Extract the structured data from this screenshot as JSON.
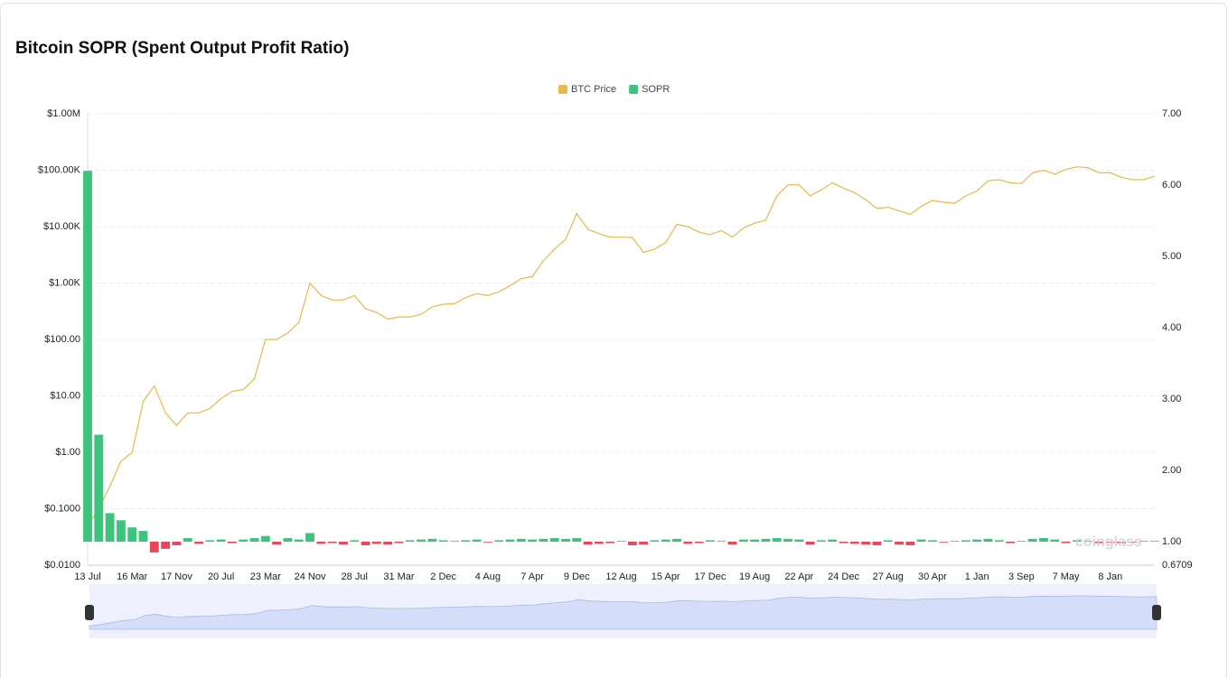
{
  "chart_data": {
    "type": "line_bar",
    "title": "Bitcoin SOPR (Spent Output Profit Ratio)",
    "watermark": "coinglass",
    "log_scale": true,
    "grid": true,
    "legend_position": "top",
    "categories": [
      "13 Jul",
      null,
      null,
      null,
      "16 Mar",
      null,
      null,
      null,
      "17 Nov",
      null,
      null,
      null,
      "20 Jul",
      null,
      null,
      null,
      "23 Mar",
      null,
      null,
      null,
      "24 Nov",
      null,
      null,
      null,
      "28 Jul",
      null,
      null,
      null,
      "31 Mar",
      null,
      null,
      null,
      "2 Dec",
      null,
      null,
      null,
      "4 Aug",
      null,
      null,
      null,
      "7 Apr",
      null,
      null,
      null,
      "9 Dec",
      null,
      null,
      null,
      "12 Aug",
      null,
      null,
      null,
      "15 Apr",
      null,
      null,
      null,
      "17 Dec",
      null,
      null,
      null,
      "19 Aug",
      null,
      null,
      null,
      "22 Apr",
      null,
      null,
      null,
      "24 Dec",
      null,
      null,
      null,
      "27 Aug",
      null,
      null,
      null,
      "30 Apr",
      null,
      null,
      null,
      "1 Jan",
      null,
      null,
      null,
      "3 Sep",
      null,
      null,
      null,
      "7 May",
      null,
      null,
      null,
      "8 Jan",
      null,
      null,
      null,
      null
    ],
    "ylim": [
      0.01,
      1000000
    ],
    "yticks": [
      {
        "value": 0.01,
        "label": "$0.0100"
      },
      {
        "value": 0.1,
        "label": "$0.1000"
      },
      {
        "value": 1,
        "label": "$1.00"
      },
      {
        "value": 10,
        "label": "$10.00"
      },
      {
        "value": 100,
        "label": "$100.00"
      },
      {
        "value": 1000,
        "label": "$1.00K"
      },
      {
        "value": 10000,
        "label": "$10.00K"
      },
      {
        "value": 100000,
        "label": "$100.00K"
      },
      {
        "value": 1000000,
        "label": "$1.00M"
      }
    ],
    "y2lim": [
      0.6709,
      7
    ],
    "y2ticks": [
      0.6709,
      {
        "value": 1,
        "label": "1.00"
      },
      {
        "value": 2,
        "label": "2.00"
      },
      {
        "value": 3,
        "label": "3.00"
      },
      {
        "value": 4,
        "label": "4.00"
      },
      {
        "value": 5,
        "label": "5.00"
      },
      {
        "value": 6,
        "label": "6.00"
      },
      {
        "value": 7,
        "label": "7.00"
      }
    ],
    "series": [
      {
        "name": "BTC Price",
        "color": "#e9b949",
        "values": [
          0.05,
          0.1,
          0.25,
          0.7,
          1,
          8,
          15,
          5,
          3,
          5,
          5,
          6,
          9,
          12,
          13,
          20,
          100,
          100,
          130,
          200,
          1000,
          600,
          500,
          500,
          600,
          350,
          300,
          230,
          250,
          250,
          280,
          380,
          420,
          430,
          550,
          650,
          600,
          700,
          900,
          1200,
          1300,
          2500,
          4000,
          6000,
          17000,
          9000,
          7500,
          6500,
          6500,
          6400,
          3500,
          4000,
          5200,
          11000,
          10000,
          8000,
          7200,
          8500,
          6500,
          9500,
          11500,
          13000,
          35000,
          55000,
          55000,
          35000,
          45000,
          60000,
          48000,
          40000,
          30000,
          21000,
          22000,
          19000,
          16500,
          23000,
          29000,
          27000,
          26000,
          35000,
          43000,
          65000,
          68000,
          60000,
          58000,
          90000,
          100000,
          85000,
          103000,
          115000,
          110000,
          90000,
          90000,
          75000,
          68000,
          68000,
          78000
        ]
      },
      {
        "name": "SOPR",
        "color": "#3cc47c",
        "negative_color": "#e8475b",
        "axis": "y2",
        "values": [
          6.2,
          2.5,
          1.4,
          1.3,
          1.2,
          1.15,
          0.85,
          0.9,
          0.95,
          1.05,
          0.97,
          1.02,
          1.03,
          0.98,
          1.03,
          1.05,
          1.08,
          0.96,
          1.05,
          1.03,
          1.12,
          0.97,
          0.98,
          0.96,
          1.02,
          0.95,
          0.97,
          0.96,
          0.98,
          1.02,
          1.03,
          1.04,
          1.02,
          1.01,
          1.02,
          1.03,
          0.99,
          1.02,
          1.03,
          1.04,
          1.03,
          1.04,
          1.05,
          1.04,
          1.05,
          0.96,
          0.97,
          0.98,
          1.01,
          0.95,
          0.96,
          1.02,
          1.03,
          1.04,
          0.97,
          0.98,
          1.02,
          1.01,
          0.96,
          1.03,
          1.03,
          1.04,
          1.05,
          1.04,
          1.03,
          0.96,
          1.02,
          1.03,
          0.98,
          0.97,
          0.96,
          0.95,
          1.02,
          0.96,
          0.95,
          1.03,
          1.02,
          0.99,
          1.01,
          1.02,
          1.03,
          1.04,
          1.02,
          0.98,
          1.01,
          1.04,
          1.05,
          1.03,
          0.98,
          1.02,
          1.01,
          0.98,
          0.99,
          0.98,
          0.99,
          1.01,
          1.01
        ]
      }
    ]
  }
}
